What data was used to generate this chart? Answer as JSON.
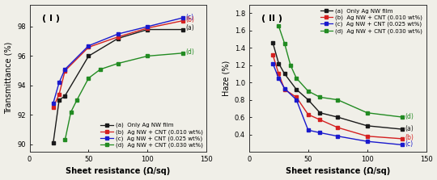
{
  "transmittance": {
    "x_a": [
      20,
      25,
      30,
      50,
      75,
      100,
      130
    ],
    "y_a": [
      90.1,
      93.0,
      93.3,
      96.0,
      97.2,
      97.8,
      97.8
    ],
    "x_b": [
      20,
      25,
      30,
      50,
      75,
      100,
      130
    ],
    "y_b": [
      92.5,
      93.4,
      95.0,
      96.6,
      97.3,
      97.9,
      98.4
    ],
    "x_c": [
      20,
      25,
      30,
      50,
      75,
      100,
      130
    ],
    "y_c": [
      92.8,
      94.2,
      95.1,
      96.7,
      97.5,
      98.0,
      98.6
    ],
    "x_d": [
      30,
      35,
      40,
      50,
      60,
      75,
      100,
      130
    ],
    "y_d": [
      90.3,
      92.2,
      93.0,
      94.5,
      95.1,
      95.5,
      96.0,
      96.2
    ],
    "ylabel": "Transmittance (%)",
    "ylim": [
      89.5,
      99.5
    ],
    "yticks": [
      90,
      92,
      94,
      96,
      98
    ],
    "title": "( I )",
    "end_labels": {
      "c": [
        98.65
      ],
      "b": [
        98.45
      ],
      "a": [
        97.9
      ],
      "d": [
        96.25
      ]
    }
  },
  "haze": {
    "x_a": [
      20,
      25,
      30,
      40,
      50,
      60,
      75,
      100,
      130
    ],
    "y_a": [
      1.46,
      1.22,
      1.1,
      0.92,
      0.8,
      0.65,
      0.6,
      0.5,
      0.46
    ],
    "x_b": [
      20,
      25,
      30,
      40,
      50,
      60,
      75,
      100,
      130
    ],
    "y_b": [
      1.32,
      1.1,
      0.92,
      0.83,
      0.63,
      0.57,
      0.48,
      0.38,
      0.35
    ],
    "x_c": [
      20,
      25,
      30,
      40,
      50,
      60,
      75,
      100,
      130
    ],
    "y_c": [
      1.22,
      1.05,
      0.93,
      0.8,
      0.45,
      0.42,
      0.38,
      0.32,
      0.28
    ],
    "x_d": [
      25,
      30,
      35,
      40,
      50,
      60,
      75,
      100,
      130
    ],
    "y_d": [
      1.65,
      1.45,
      1.2,
      1.05,
      0.9,
      0.83,
      0.8,
      0.65,
      0.6
    ],
    "ylabel": "Haze (%)",
    "ylim": [
      0.2,
      1.9
    ],
    "yticks": [
      0.4,
      0.6,
      0.8,
      1.0,
      1.2,
      1.4,
      1.6,
      1.8
    ],
    "title": "( II )",
    "end_labels": {
      "d": [
        0.61
      ],
      "a": [
        0.47
      ],
      "b": [
        0.36
      ],
      "c": [
        0.29
      ]
    }
  },
  "colors": {
    "a": "#1a1a1a",
    "b": "#d42020",
    "c": "#1a1acd",
    "d": "#228b22"
  },
  "legend_lines": {
    "a": "(a) –■– Only Ag NW film",
    "b": "(b) –■– Ag NW + CNT (0.010 wt%)",
    "c": "(c) –■– Ag NW + CNT (0.025 wt%)",
    "d": "(d) –■– Ag NW + CNT (0.030 wt%)"
  },
  "legend_text": {
    "a": "Only Ag NW film",
    "b": "Ag NW + CNT (0.010 wt%)",
    "c": "Ag NW + CNT (0.025 wt%)",
    "d": "Ag NW + CNT (0.030 wt%)"
  },
  "xlabel": "Sheet resistance (Ω/sq)",
  "xlim": [
    0,
    150
  ],
  "xticks": [
    0,
    50,
    100,
    150
  ],
  "bg_color": "#f0efe8"
}
